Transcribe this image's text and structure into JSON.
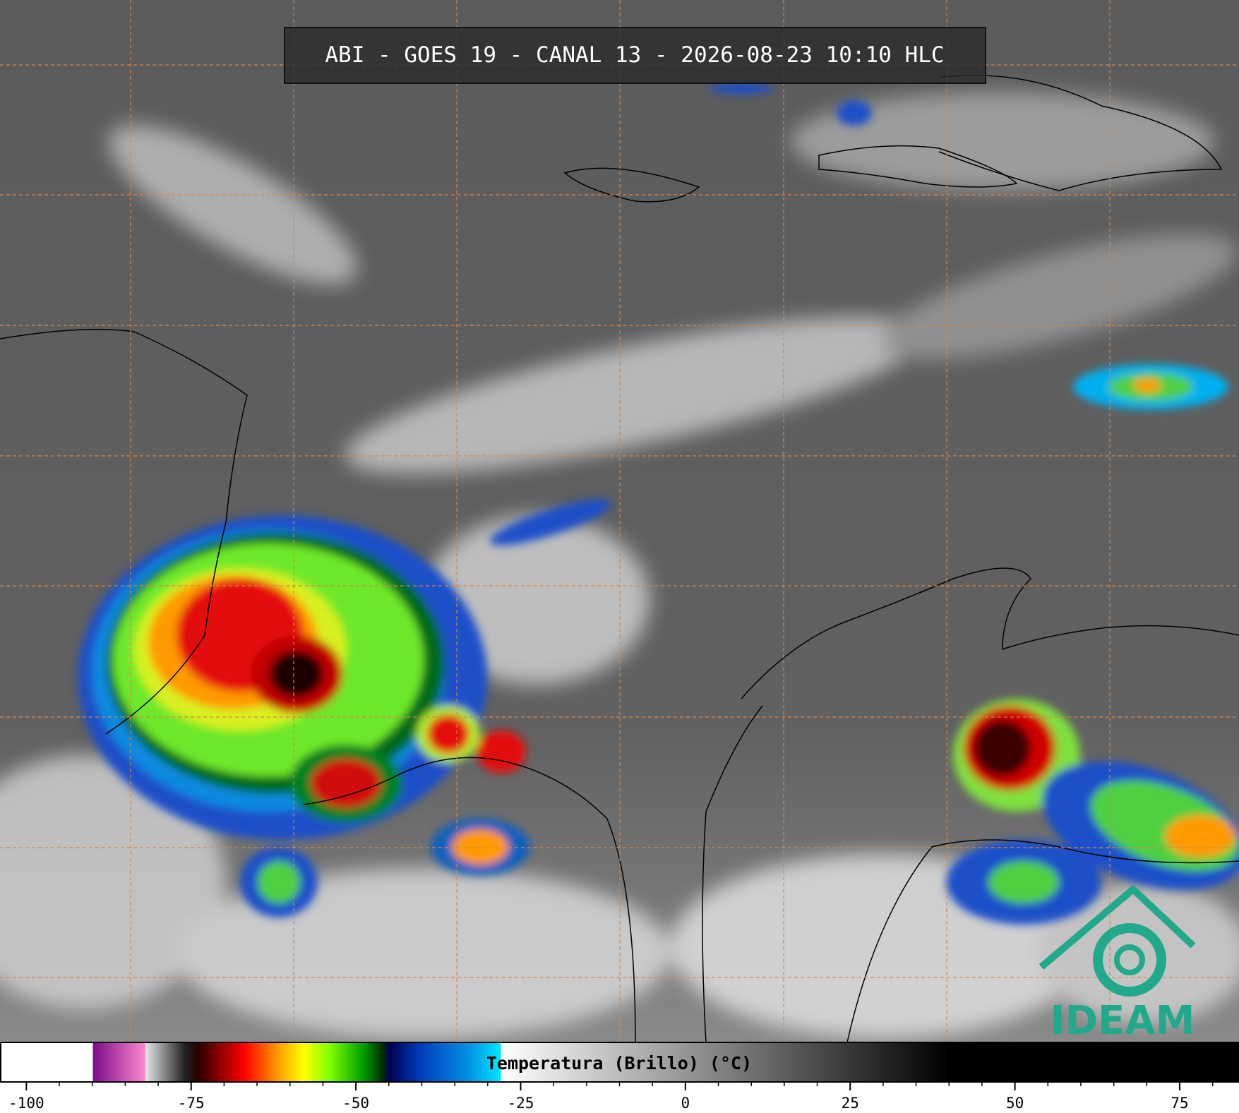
{
  "header": {
    "title": "ABI - GOES 19 - CANAL 13 - 2026-08-23 10:10 HLC"
  },
  "logo": {
    "text": "IDEAM"
  },
  "colorbar": {
    "label": "Temperatura (Brillo) (°C)",
    "xlim": [
      -104,
      84
    ],
    "xticks": [
      -100,
      -75,
      -50,
      -25,
      0,
      25,
      50,
      75
    ],
    "minor_tick_interval": 5,
    "color_stops": [
      {
        "value": -104,
        "color": "#ffffff"
      },
      {
        "value": -90,
        "color": "#ffffff"
      },
      {
        "value": -90,
        "color": "#7a0a8a"
      },
      {
        "value": -82,
        "color": "#ff8ad0"
      },
      {
        "value": -82,
        "color": "#e6e6e6"
      },
      {
        "value": -76,
        "color": "#202020"
      },
      {
        "value": -74,
        "color": "#2a0000"
      },
      {
        "value": -67,
        "color": "#ff0000"
      },
      {
        "value": -62,
        "color": "#ff9900"
      },
      {
        "value": -58,
        "color": "#ffff00"
      },
      {
        "value": -54,
        "color": "#80ff00"
      },
      {
        "value": -49,
        "color": "#00a000"
      },
      {
        "value": -46,
        "color": "#003000"
      },
      {
        "value": -45,
        "color": "#000050"
      },
      {
        "value": -40,
        "color": "#0040c0"
      },
      {
        "value": -33,
        "color": "#0090e0"
      },
      {
        "value": -28,
        "color": "#00e8ff"
      },
      {
        "value": -28,
        "color": "#ffffff"
      },
      {
        "value": 40,
        "color": "#000000"
      },
      {
        "value": 84,
        "color": "#000000"
      }
    ]
  }
}
